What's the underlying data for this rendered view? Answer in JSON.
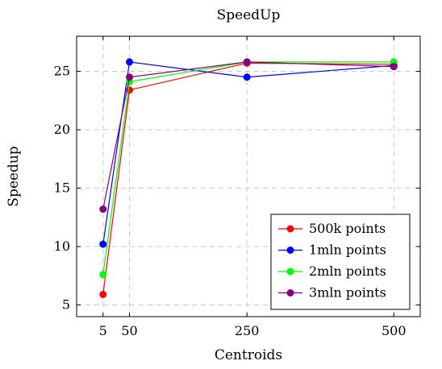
{
  "chart_data": {
    "type": "line",
    "title": "SpeedUp",
    "xlabel": "Centroids",
    "ylabel": "Speedup",
    "x": [
      5,
      50,
      250,
      500
    ],
    "xticks": [
      5,
      50,
      250,
      500
    ],
    "yticks": [
      5,
      10,
      15,
      20,
      25
    ],
    "xlim": [
      -40,
      545
    ],
    "ylim": [
      4,
      28
    ],
    "grid": true,
    "legend_position": "bottom-right",
    "series": [
      {
        "name": "500k points",
        "color": "#ff0000",
        "values": [
          5.9,
          23.4,
          25.7,
          25.6
        ]
      },
      {
        "name": "1mln points",
        "color": "#0000ff",
        "values": [
          10.2,
          25.8,
          24.5,
          25.5
        ]
      },
      {
        "name": "2mln points",
        "color": "#00ff00",
        "values": [
          7.6,
          24.1,
          25.8,
          25.8
        ]
      },
      {
        "name": "3mln points",
        "color": "#800080",
        "values": [
          13.2,
          24.5,
          25.8,
          25.4
        ]
      }
    ]
  }
}
